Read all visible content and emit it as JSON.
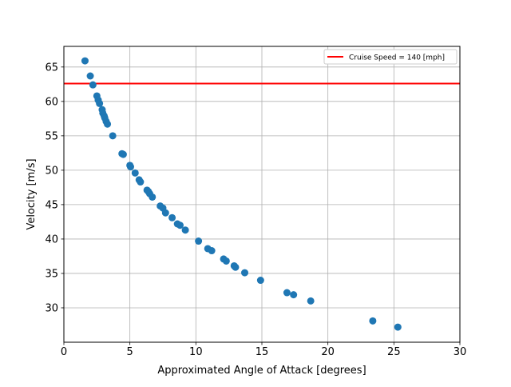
{
  "chart_data": {
    "type": "scatter",
    "title": "",
    "xlabel": "Approximated Angle of Attack [degrees]",
    "ylabel": "Velocity [m/s]",
    "xlim": [
      0,
      30
    ],
    "ylim": [
      25,
      68
    ],
    "xticks": [
      0,
      5,
      10,
      15,
      20,
      25,
      30
    ],
    "yticks": [
      30,
      35,
      40,
      45,
      50,
      55,
      60,
      65
    ],
    "grid": true,
    "legend_position": "top-right",
    "marker_color": "#1f77b4",
    "series": [
      {
        "x": [
          1.6,
          2.0,
          2.2,
          2.5,
          2.6,
          2.7,
          2.9,
          2.95,
          3.05,
          3.1,
          3.2,
          3.3,
          3.7,
          4.4,
          4.5,
          5.0,
          5.05,
          5.4,
          5.7,
          5.8,
          6.3,
          6.4,
          6.5,
          6.7,
          7.3,
          7.5,
          7.7,
          8.2,
          8.6,
          8.8,
          9.2,
          10.2,
          10.9,
          11.2,
          12.1,
          12.3,
          12.9,
          13.0,
          13.7,
          14.9,
          16.9,
          17.4,
          18.7,
          23.4,
          25.3
        ],
        "y": [
          65.9,
          63.7,
          62.4,
          60.8,
          60.2,
          59.7,
          58.8,
          58.3,
          57.9,
          57.6,
          57.1,
          56.7,
          55.0,
          52.4,
          52.3,
          50.7,
          50.5,
          49.6,
          48.6,
          48.3,
          47.1,
          46.9,
          46.6,
          46.1,
          44.8,
          44.5,
          43.8,
          43.1,
          42.2,
          42.0,
          41.3,
          39.7,
          38.6,
          38.3,
          37.1,
          36.8,
          36.1,
          35.9,
          35.1,
          34.0,
          32.2,
          31.9,
          31.0,
          28.1,
          27.2
        ]
      }
    ],
    "reference_line": {
      "name": "Cruise Speed = 140 [mph]",
      "orientation": "horizontal",
      "y": 62.6,
      "color": "#ff0000"
    }
  }
}
